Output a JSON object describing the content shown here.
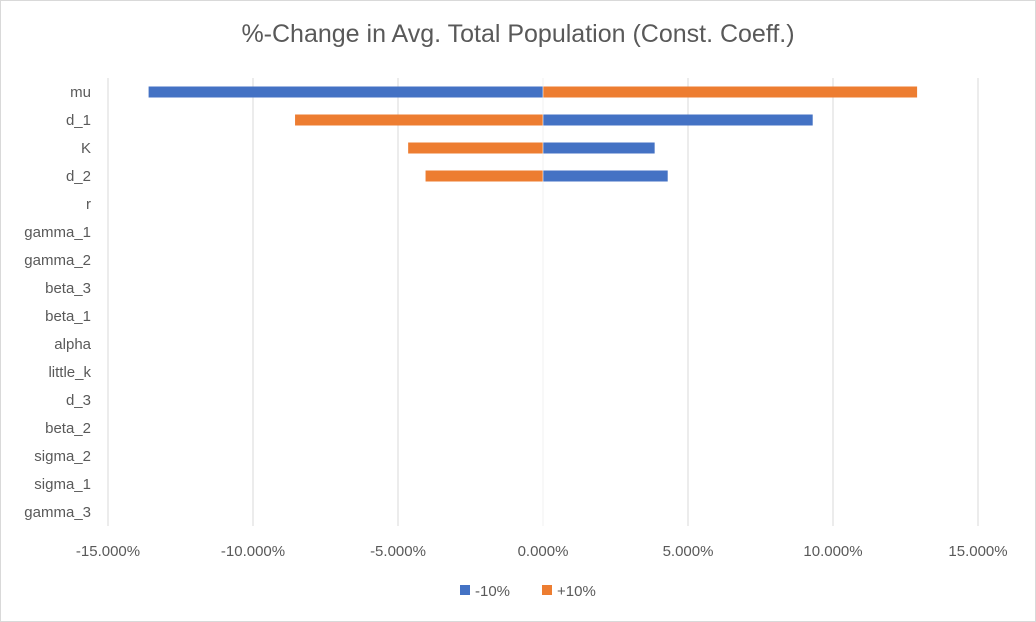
{
  "chart_data": {
    "type": "bar",
    "orientation": "horizontal",
    "title": "%-Change in Avg. Total Population (Const. Coeff.)",
    "xlabel": "",
    "ylabel": "",
    "xlim": [
      -0.15,
      0.15
    ],
    "x_ticks": [
      -0.15,
      -0.1,
      -0.05,
      0.0,
      0.05,
      0.1,
      0.15
    ],
    "x_tick_labels": [
      "-15.000%",
      "-10.000%",
      "-5.000%",
      "0.000%",
      "5.000%",
      "10.000%",
      "15.000%"
    ],
    "categories": [
      "mu",
      "d_1",
      "K",
      "d_2",
      "r",
      "gamma_1",
      "gamma_2",
      "beta_3",
      "beta_1",
      "alpha",
      "little_k",
      "d_3",
      "beta_2",
      "sigma_2",
      "sigma_1",
      "gamma_3"
    ],
    "series": [
      {
        "name": "-10%",
        "color": "#4472c4",
        "values": [
          -0.136,
          0.093,
          0.0385,
          0.043,
          0,
          0,
          0,
          0,
          0,
          0,
          0,
          0,
          0,
          0,
          0,
          0
        ]
      },
      {
        "name": "+10%",
        "color": "#ed7d31",
        "values": [
          0.129,
          -0.0855,
          -0.0465,
          -0.0405,
          0,
          0,
          0,
          0,
          0,
          0,
          0,
          0,
          0,
          0,
          0,
          0
        ]
      }
    ],
    "grid": "vertical",
    "legend_position": "bottom"
  }
}
